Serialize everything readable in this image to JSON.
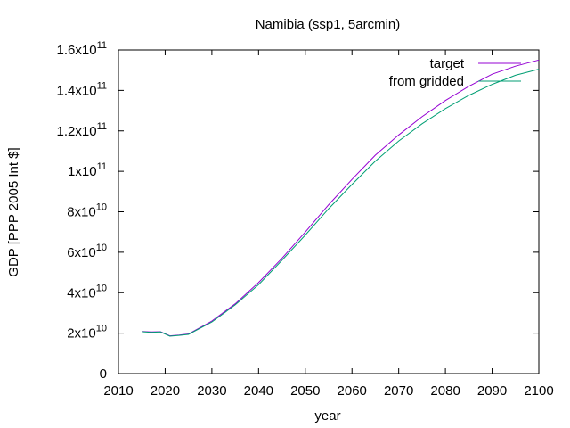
{
  "chart_data": {
    "type": "line",
    "title": "Namibia (ssp1, 5arcmin)",
    "xlabel": "year",
    "ylabel": "GDP [PPP 2005 Int $]",
    "xlim": [
      2010,
      2100
    ],
    "ylim": [
      0,
      160000000000
    ],
    "grid": false,
    "legend_position": "top-right",
    "x_ticks": [
      2010,
      2020,
      2030,
      2040,
      2050,
      2060,
      2070,
      2080,
      2090,
      2100
    ],
    "x_tick_labels": [
      "2010",
      "2020",
      "2030",
      "2040",
      "2050",
      "2060",
      "2070",
      "2080",
      "2090",
      "2100"
    ],
    "y_ticks": [
      0,
      20000000000,
      40000000000,
      60000000000,
      80000000000,
      100000000000,
      120000000000,
      140000000000,
      160000000000
    ],
    "y_tick_labels": [
      {
        "mant": "0",
        "exp": ""
      },
      {
        "mant": "2x10",
        "exp": "10"
      },
      {
        "mant": "4x10",
        "exp": "10"
      },
      {
        "mant": "6x10",
        "exp": "10"
      },
      {
        "mant": "8x10",
        "exp": "10"
      },
      {
        "mant": "1x10",
        "exp": "11"
      },
      {
        "mant": "1.2x10",
        "exp": "11"
      },
      {
        "mant": "1.4x10",
        "exp": "11"
      },
      {
        "mant": "1.6x10",
        "exp": "11"
      }
    ],
    "x": [
      2015,
      2017,
      2019,
      2021,
      2023,
      2025,
      2030,
      2035,
      2040,
      2045,
      2050,
      2055,
      2060,
      2065,
      2070,
      2075,
      2080,
      2085,
      2090,
      2095,
      2100
    ],
    "series": [
      {
        "name": "target",
        "color": "#9400d3",
        "values": [
          20800000000,
          20600000000,
          20700000000,
          18700000000,
          19100000000,
          19600000000,
          26000000000,
          34500000000,
          45000000000,
          57000000000,
          70000000000,
          83500000000,
          96000000000,
          108000000000,
          118000000000,
          127000000000,
          135000000000,
          142000000000,
          148000000000,
          152000000000,
          155000000000
        ]
      },
      {
        "name": "from gridded",
        "color": "#009e73",
        "values": [
          20700000000,
          20400000000,
          20600000000,
          18500000000,
          18900000000,
          19400000000,
          25500000000,
          34000000000,
          44000000000,
          56000000000,
          68500000000,
          81500000000,
          93500000000,
          105000000000,
          115000000000,
          123500000000,
          131000000000,
          137500000000,
          143000000000,
          147500000000,
          150500000000
        ]
      }
    ]
  }
}
